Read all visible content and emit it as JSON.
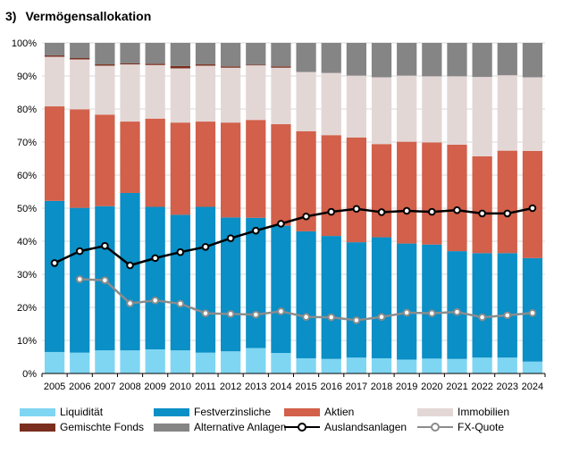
{
  "title": {
    "number": "3)",
    "text": "Vermögensallokation"
  },
  "colors": {
    "liquiditaet": "#7fd6f2",
    "festverzinsliche": "#0a8fc6",
    "aktien": "#d2604a",
    "immobilien": "#e3d7d5",
    "gemischte_fonds": "#7a2e1e",
    "alternative": "#858585",
    "auslandsanlagen": "#000000",
    "fx_quote": "#8c8c8c",
    "grid": "#d9d9d9"
  },
  "chart_data": {
    "type": "bar",
    "stacked": true,
    "categories": [
      "2005",
      "2006",
      "2007",
      "2008",
      "2009",
      "2010",
      "2011",
      "2012",
      "2013",
      "2014",
      "2015",
      "2016",
      "2017",
      "2018",
      "2019",
      "2020",
      "2021",
      "2022",
      "2023",
      "2024"
    ],
    "ylim": [
      0,
      100
    ],
    "yticks": [
      "0%",
      "10%",
      "20%",
      "30%",
      "40%",
      "50%",
      "60%",
      "70%",
      "80%",
      "90%",
      "100%"
    ],
    "grid": true,
    "legend_position": "bottom",
    "series": [
      {
        "name": "Liquidität",
        "key": "liquiditaet",
        "values": [
          6.5,
          6.3,
          7.0,
          7.0,
          7.3,
          7.0,
          6.3,
          6.7,
          7.7,
          6.2,
          4.6,
          4.4,
          4.8,
          4.6,
          4.2,
          4.5,
          4.4,
          4.8,
          4.8,
          3.6
        ]
      },
      {
        "name": "Festverzinsliche",
        "key": "festverzinsliche",
        "values": [
          45.7,
          43.8,
          43.6,
          47.6,
          43.1,
          41.0,
          44.1,
          40.5,
          39.4,
          38.5,
          38.4,
          37.2,
          34.9,
          36.6,
          35.1,
          34.5,
          32.6,
          31.6,
          31.6,
          31.3
        ]
      },
      {
        "name": "Aktien",
        "key": "aktien",
        "values": [
          28.6,
          29.8,
          27.7,
          21.6,
          26.7,
          27.9,
          25.8,
          28.7,
          29.6,
          30.7,
          30.3,
          30.5,
          31.7,
          28.2,
          30.8,
          30.9,
          32.2,
          29.3,
          31.0,
          32.4
        ]
      },
      {
        "name": "Immobilien",
        "key": "immobilien",
        "values": [
          15.0,
          15.1,
          14.8,
          17.3,
          16.2,
          16.4,
          16.9,
          16.6,
          16.5,
          17.1,
          17.9,
          18.8,
          18.7,
          20.2,
          20.0,
          20.0,
          20.7,
          24.0,
          22.8,
          22.3
        ]
      },
      {
        "name": "Gemischte Fonds",
        "key": "gemischte_fonds",
        "values": [
          0.4,
          0.4,
          0.4,
          0.3,
          0.4,
          0.7,
          0.4,
          0.4,
          0.2,
          0.4,
          0.0,
          0.0,
          0.0,
          0.0,
          0.0,
          0.0,
          0.0,
          0.0,
          0.0,
          0.0
        ]
      },
      {
        "name": "Alternative Anlagen",
        "key": "alternative",
        "values": [
          3.8,
          4.6,
          6.5,
          6.2,
          6.3,
          7.0,
          6.5,
          7.1,
          6.6,
          7.1,
          8.8,
          9.1,
          9.9,
          10.4,
          9.9,
          10.1,
          10.1,
          10.3,
          9.8,
          10.4
        ]
      }
    ],
    "lines": [
      {
        "name": "Auslandsanlagen",
        "key": "auslandsanlagen",
        "values": [
          33.4,
          37.0,
          38.6,
          32.7,
          34.9,
          36.7,
          38.3,
          40.9,
          43.2,
          45.3,
          47.5,
          48.9,
          49.8,
          48.8,
          49.2,
          48.9,
          49.4,
          48.4,
          48.4,
          50.0
        ]
      },
      {
        "name": "FX-Quote",
        "key": "fx_quote",
        "values": [
          null,
          28.5,
          28.2,
          21.2,
          22.1,
          21.1,
          18.2,
          18.0,
          17.8,
          18.8,
          17.1,
          17.0,
          16.1,
          17.1,
          18.4,
          18.2,
          18.6,
          17.0,
          17.6,
          18.3
        ]
      }
    ]
  },
  "legend": [
    {
      "label": "Liquidität",
      "key": "liquiditaet",
      "kind": "swatch"
    },
    {
      "label": "Festverzinsliche",
      "key": "festverzinsliche",
      "kind": "swatch"
    },
    {
      "label": "Aktien",
      "key": "aktien",
      "kind": "swatch"
    },
    {
      "label": "Immobilien",
      "key": "immobilien",
      "kind": "swatch"
    },
    {
      "label": "Gemischte Fonds",
      "key": "gemischte_fonds",
      "kind": "swatch"
    },
    {
      "label": "Alternative Anlagen",
      "key": "alternative",
      "kind": "swatch"
    },
    {
      "label": "Auslandsanlagen",
      "key": "auslandsanlagen",
      "kind": "line"
    },
    {
      "label": "FX-Quote",
      "key": "fx_quote",
      "kind": "line"
    }
  ]
}
